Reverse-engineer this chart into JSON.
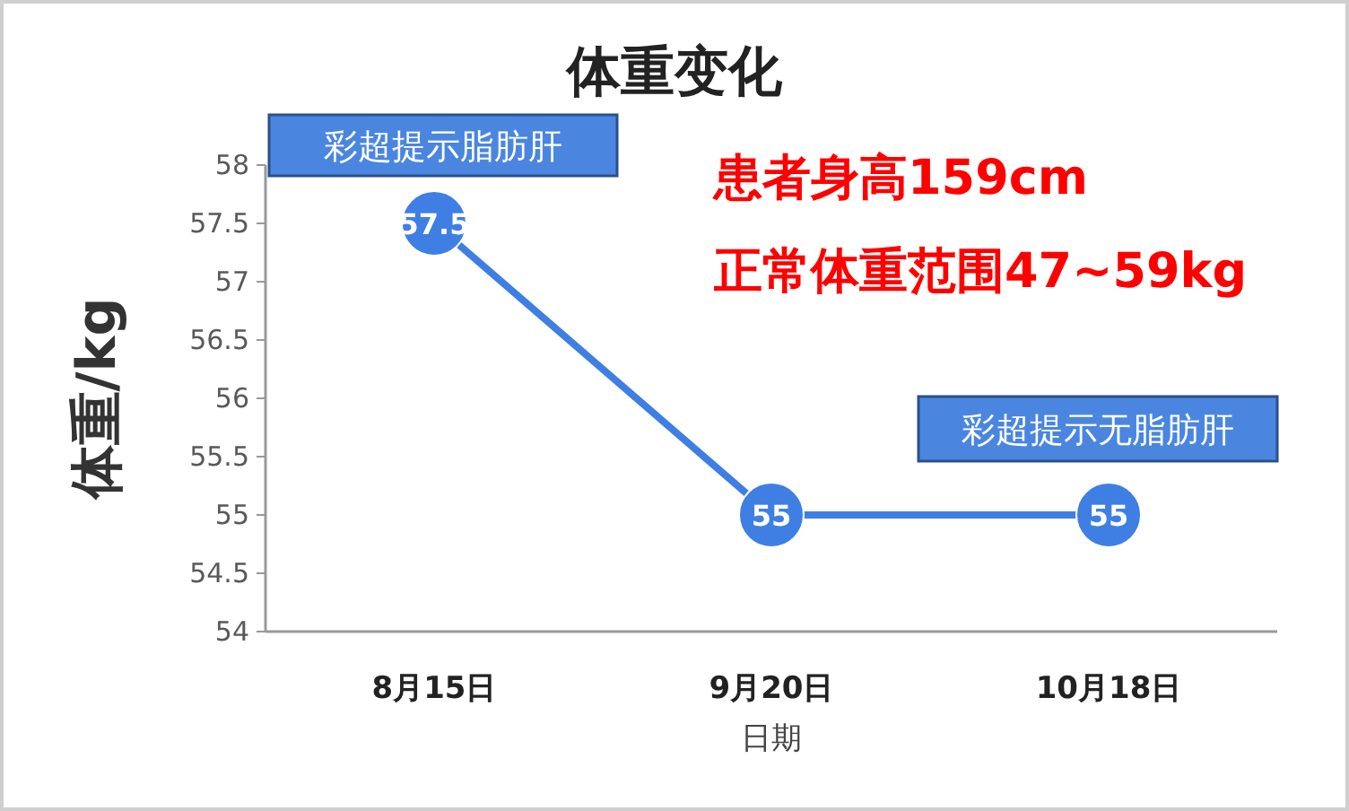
{
  "chart_data": {
    "type": "line",
    "title": "体重变化",
    "xlabel": "日期",
    "ylabel": "体重/kg",
    "categories": [
      "8月15日",
      "9月20日",
      "10月18日"
    ],
    "series": [
      {
        "color": "#3f7fe3",
        "values": [
          57.5,
          55,
          55
        ]
      }
    ],
    "ylim": [
      54,
      58
    ],
    "yticks": [
      54,
      54.5,
      55,
      55.5,
      56,
      56.5,
      57,
      57.5,
      58
    ],
    "marker": "circle",
    "data_labels": true,
    "annotations": [
      "彩超提示脂肪肝",
      "患者身高159cm",
      "正常体重范围47~59kg",
      "彩超提示无脂肪肝"
    ]
  }
}
